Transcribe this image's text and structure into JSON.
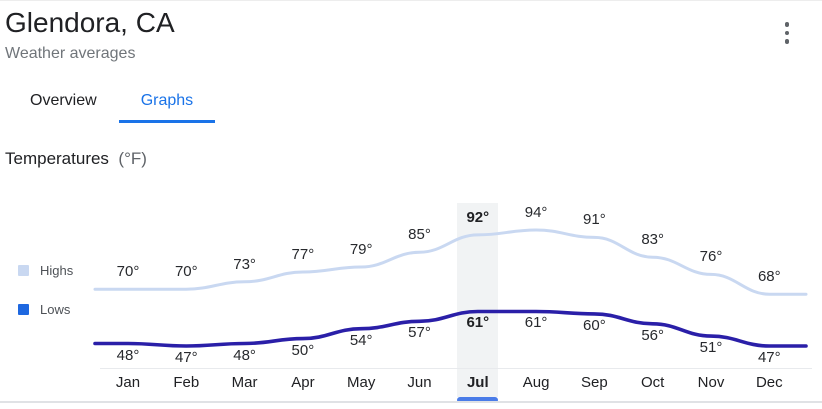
{
  "header": {
    "title": "Glendora, CA",
    "subtitle": "Weather averages"
  },
  "icons": {
    "more_options": "vertical-ellipsis"
  },
  "tabs": [
    {
      "label": "Overview",
      "active": false
    },
    {
      "label": "Graphs",
      "active": true
    }
  ],
  "section_title": {
    "label": "Temperatures",
    "unit": "(°F)"
  },
  "legend": [
    {
      "label": "Highs",
      "color": "#c9d8f1"
    },
    {
      "label": "Lows",
      "color": "#1e68e0"
    }
  ],
  "chart_data": {
    "type": "line",
    "title": "Temperatures (°F)",
    "categories": [
      "Jan",
      "Feb",
      "Mar",
      "Apr",
      "May",
      "Jun",
      "Jul",
      "Aug",
      "Sep",
      "Oct",
      "Nov",
      "Dec"
    ],
    "series": [
      {
        "name": "Highs",
        "color": "#c9d8f1",
        "values": [
          70,
          70,
          73,
          77,
          79,
          85,
          92,
          94,
          91,
          83,
          76,
          68
        ]
      },
      {
        "name": "Lows",
        "color": "#2a1fa8",
        "values": [
          48,
          47,
          48,
          50,
          54,
          57,
          61,
          61,
          60,
          56,
          51,
          47
        ]
      }
    ],
    "unit": "°F",
    "value_suffix": "°",
    "highlighted_category": "Jul",
    "legend_position": "left",
    "grid": false
  },
  "colors": {
    "accent_blue": "#1a73e8",
    "highlight_column": "#f1f3f4",
    "indicator_bar": "#4a7ce8",
    "text_primary": "#202124",
    "text_secondary": "#5f6368"
  }
}
